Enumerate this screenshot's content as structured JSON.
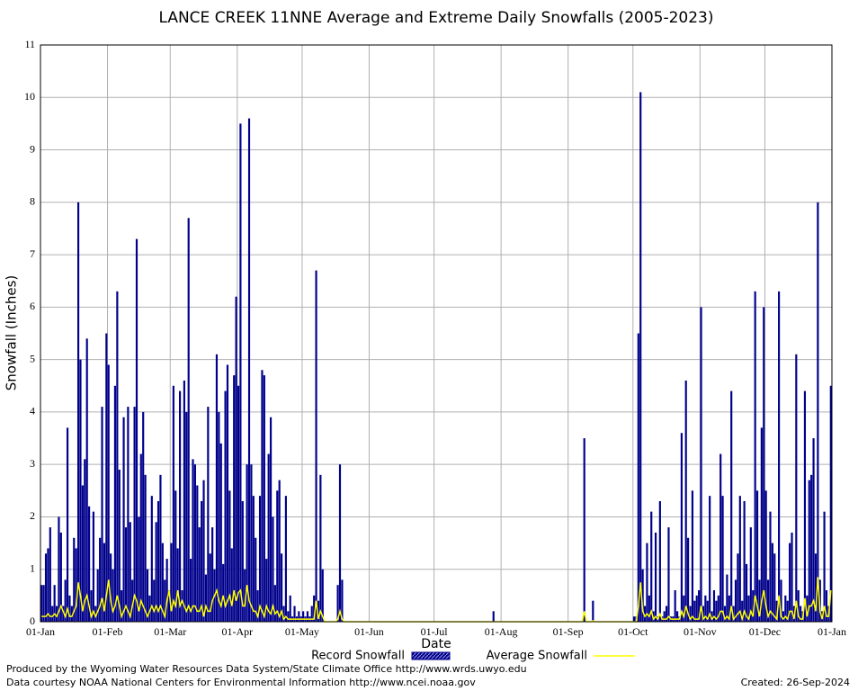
{
  "chart_data": {
    "type": "bar",
    "title": "LANCE CREEK 11NNE Average and Extreme Daily Snowfalls (2005-2023)",
    "x_label": "Date",
    "y_label": "Snowfall (Inches)",
    "xlim": [
      0,
      366
    ],
    "xticks": [
      {
        "value": 0,
        "label": "01-Jan"
      },
      {
        "value": 31,
        "label": "01-Feb"
      },
      {
        "value": 60,
        "label": "01-Mar"
      },
      {
        "value": 91,
        "label": "01-Apr"
      },
      {
        "value": 121,
        "label": "01-May"
      },
      {
        "value": 152,
        "label": "01-Jun"
      },
      {
        "value": 182,
        "label": "01-Jul"
      },
      {
        "value": 213,
        "label": "01-Aug"
      },
      {
        "value": 244,
        "label": "01-Sep"
      },
      {
        "value": 274,
        "label": "01-Oct"
      },
      {
        "value": 305,
        "label": "01-Nov"
      },
      {
        "value": 335,
        "label": "01-Dec"
      },
      {
        "value": 366,
        "label": "01-Jan"
      }
    ],
    "ylim": [
      0,
      11
    ],
    "yticks": [
      0,
      1,
      2,
      3,
      4,
      5,
      6,
      7,
      8,
      9,
      10,
      11
    ],
    "grid": true,
    "series": [
      {
        "name": "Record Snowfall",
        "type": "bar",
        "color": "#00008b",
        "values": [
          0.7,
          0.7,
          1.3,
          1.4,
          1.8,
          0.3,
          0.7,
          0.3,
          2.0,
          1.7,
          0.3,
          0.8,
          3.7,
          0.5,
          0.3,
          1.6,
          1.4,
          8.0,
          5.0,
          2.6,
          3.1,
          5.4,
          2.2,
          0.6,
          2.1,
          0.3,
          1.0,
          1.6,
          4.1,
          1.5,
          5.5,
          4.9,
          1.3,
          1.0,
          4.5,
          6.3,
          2.9,
          0.6,
          3.9,
          1.8,
          4.1,
          1.9,
          0.8,
          4.1,
          7.3,
          2.0,
          3.2,
          4.0,
          2.8,
          1.0,
          0.5,
          2.4,
          0.8,
          1.9,
          2.3,
          2.8,
          1.5,
          0.8,
          1.2,
          0.6,
          1.5,
          4.5,
          2.5,
          1.4,
          4.4,
          0.6,
          4.6,
          4.0,
          7.7,
          1.2,
          3.1,
          3.0,
          2.6,
          1.8,
          2.3,
          2.7,
          0.9,
          4.1,
          1.3,
          1.8,
          1.0,
          5.1,
          4.0,
          3.4,
          1.1,
          4.4,
          4.9,
          2.5,
          1.4,
          4.7,
          6.2,
          4.5,
          9.5,
          2.3,
          1.0,
          3.0,
          9.6,
          3.0,
          2.4,
          1.6,
          0.6,
          2.4,
          4.8,
          4.7,
          1.2,
          3.2,
          3.9,
          2.0,
          0.7,
          2.5,
          2.7,
          1.3,
          0.3,
          2.4,
          0.2,
          0.5,
          0.1,
          0.3,
          0.1,
          0.2,
          0.1,
          0.2,
          0.1,
          0.2,
          0.1,
          0.3,
          0.5,
          6.7,
          0.4,
          2.8,
          1.0,
          0,
          0,
          0,
          0,
          0,
          0,
          0.7,
          3.0,
          0.8,
          0,
          0,
          0,
          0,
          0,
          0,
          0,
          0,
          0,
          0,
          0,
          0,
          0,
          0,
          0,
          0,
          0,
          0,
          0,
          0,
          0,
          0,
          0,
          0,
          0,
          0,
          0,
          0,
          0,
          0,
          0,
          0,
          0,
          0,
          0,
          0,
          0,
          0,
          0,
          0,
          0,
          0,
          0,
          0,
          0,
          0,
          0,
          0,
          0,
          0,
          0,
          0,
          0,
          0,
          0,
          0,
          0,
          0,
          0,
          0,
          0,
          0,
          0,
          0,
          0,
          0,
          0,
          0,
          0,
          0.2,
          0,
          0,
          0,
          0,
          0,
          0,
          0,
          0,
          0,
          0,
          0,
          0,
          0,
          0,
          0,
          0,
          0,
          0,
          0,
          0,
          0,
          0,
          0,
          0,
          0,
          0,
          0,
          0,
          0,
          0,
          0,
          0,
          0,
          0,
          0,
          0,
          0,
          0,
          0,
          0,
          0,
          3.5,
          0,
          0,
          0,
          0.4,
          0,
          0,
          0,
          0,
          0,
          0,
          0,
          0,
          0,
          0,
          0,
          0,
          0,
          0,
          0,
          0,
          0,
          0,
          0.1,
          0.1,
          5.5,
          10.1,
          1.0,
          0.3,
          1.5,
          0.5,
          2.1,
          0.2,
          1.7,
          0.1,
          2.3,
          0.1,
          0.2,
          0.3,
          1.8,
          0.1,
          0.1,
          0.6,
          0.2,
          0.1,
          3.6,
          0.5,
          4.6,
          1.6,
          0.3,
          2.5,
          0.4,
          0.5,
          0.6,
          6.0,
          0.3,
          0.5,
          0.4,
          2.4,
          0.2,
          0.6,
          0.4,
          0.5,
          3.2,
          2.4,
          0.3,
          0.9,
          0.5,
          4.4,
          0.3,
          0.8,
          1.3,
          2.4,
          0.4,
          2.3,
          1.1,
          0.5,
          1.8,
          0.6,
          6.3,
          2.5,
          0.8,
          3.7,
          6.0,
          2.5,
          0.8,
          2.1,
          1.5,
          1.3,
          0.4,
          6.3,
          0.8,
          0.2,
          0.5,
          0.4,
          1.5,
          1.7,
          0.3,
          5.1,
          0.6,
          0.3,
          0.2,
          4.4,
          0.5,
          2.7,
          2.8,
          3.5,
          1.3,
          8.0,
          0.8,
          0.2,
          2.1,
          0.6,
          0.3,
          4.5
        ]
      },
      {
        "name": "Average Snowfall",
        "type": "line",
        "color": "#ffff00",
        "values": [
          0.1,
          0.1,
          0.1,
          0.15,
          0.1,
          0.1,
          0.15,
          0.1,
          0.2,
          0.3,
          0.2,
          0.1,
          0.25,
          0.1,
          0.1,
          0.2,
          0.3,
          0.75,
          0.5,
          0.2,
          0.4,
          0.5,
          0.3,
          0.1,
          0.2,
          0.1,
          0.2,
          0.3,
          0.45,
          0.2,
          0.5,
          0.8,
          0.4,
          0.2,
          0.3,
          0.5,
          0.3,
          0.1,
          0.2,
          0.3,
          0.2,
          0.1,
          0.3,
          0.5,
          0.4,
          0.2,
          0.4,
          0.3,
          0.2,
          0.1,
          0.2,
          0.3,
          0.2,
          0.3,
          0.2,
          0.3,
          0.2,
          0.1,
          0.4,
          0.6,
          0.2,
          0.4,
          0.3,
          0.6,
          0.3,
          0.4,
          0.3,
          0.2,
          0.3,
          0.2,
          0.3,
          0.3,
          0.2,
          0.2,
          0.3,
          0.1,
          0.3,
          0.2,
          0.2,
          0.4,
          0.5,
          0.6,
          0.4,
          0.3,
          0.5,
          0.3,
          0.4,
          0.5,
          0.3,
          0.6,
          0.4,
          0.55,
          0.6,
          0.3,
          0.3,
          0.7,
          0.4,
          0.3,
          0.2,
          0.2,
          0.1,
          0.3,
          0.2,
          0.1,
          0.3,
          0.2,
          0.15,
          0.3,
          0.15,
          0.2,
          0.1,
          0.2,
          0.05,
          0.1,
          0.05,
          0.05,
          0.05,
          0.05,
          0.05,
          0.05,
          0.05,
          0.05,
          0.05,
          0.05,
          0.05,
          0.05,
          0.05,
          0.4,
          0.05,
          0.2,
          0.1,
          0,
          0,
          0,
          0,
          0,
          0,
          0.05,
          0.2,
          0.05,
          0,
          0,
          0,
          0,
          0,
          0,
          0,
          0,
          0,
          0,
          0,
          0,
          0,
          0,
          0,
          0,
          0,
          0,
          0,
          0,
          0,
          0,
          0,
          0,
          0,
          0,
          0,
          0,
          0,
          0,
          0,
          0,
          0,
          0,
          0,
          0,
          0,
          0,
          0,
          0,
          0,
          0,
          0,
          0,
          0,
          0,
          0,
          0,
          0,
          0,
          0,
          0,
          0,
          0,
          0,
          0,
          0,
          0,
          0,
          0,
          0,
          0,
          0,
          0,
          0,
          0,
          0,
          0,
          0,
          0,
          0,
          0,
          0,
          0,
          0,
          0,
          0,
          0,
          0,
          0,
          0,
          0,
          0,
          0,
          0,
          0,
          0,
          0,
          0,
          0,
          0,
          0,
          0,
          0,
          0,
          0,
          0,
          0,
          0,
          0,
          0,
          0,
          0,
          0,
          0,
          0,
          0,
          0,
          0,
          0,
          0,
          0.2,
          0,
          0,
          0,
          0.02,
          0,
          0,
          0,
          0,
          0,
          0,
          0,
          0,
          0,
          0,
          0,
          0,
          0,
          0,
          0,
          0,
          0,
          0,
          0,
          0,
          0.3,
          0.75,
          0.2,
          0.1,
          0.15,
          0.1,
          0.2,
          0.05,
          0.1,
          0.05,
          0.15,
          0.05,
          0.05,
          0.05,
          0.1,
          0.05,
          0.05,
          0.05,
          0.05,
          0.05,
          0.2,
          0.1,
          0.3,
          0.15,
          0.05,
          0.1,
          0.05,
          0.05,
          0.05,
          0.3,
          0.05,
          0.1,
          0.05,
          0.15,
          0.05,
          0.1,
          0.05,
          0.1,
          0.2,
          0.2,
          0.05,
          0.1,
          0.05,
          0.3,
          0.05,
          0.1,
          0.15,
          0.2,
          0.05,
          0.2,
          0.1,
          0.05,
          0.2,
          0.1,
          0.5,
          0.3,
          0.1,
          0.4,
          0.6,
          0.3,
          0.1,
          0.2,
          0.15,
          0.1,
          0.05,
          0.5,
          0.1,
          0.05,
          0.1,
          0.05,
          0.2,
          0.2,
          0.05,
          0.4,
          0.1,
          0.05,
          0.05,
          0.45,
          0.1,
          0.3,
          0.3,
          0.4,
          0.2,
          0.85,
          0.2,
          0.05,
          0.3,
          0.1,
          0.1,
          0.6
        ]
      }
    ],
    "footer": [
      "Produced by the Wyoming Water Resources Data System/State Climate Office http://www.wrds.uwyo.edu",
      "Data courtesy NOAA National Centers for Environmental Information http://www.ncei.noaa.gov",
      "Created:  26-Sep-2024"
    ]
  }
}
